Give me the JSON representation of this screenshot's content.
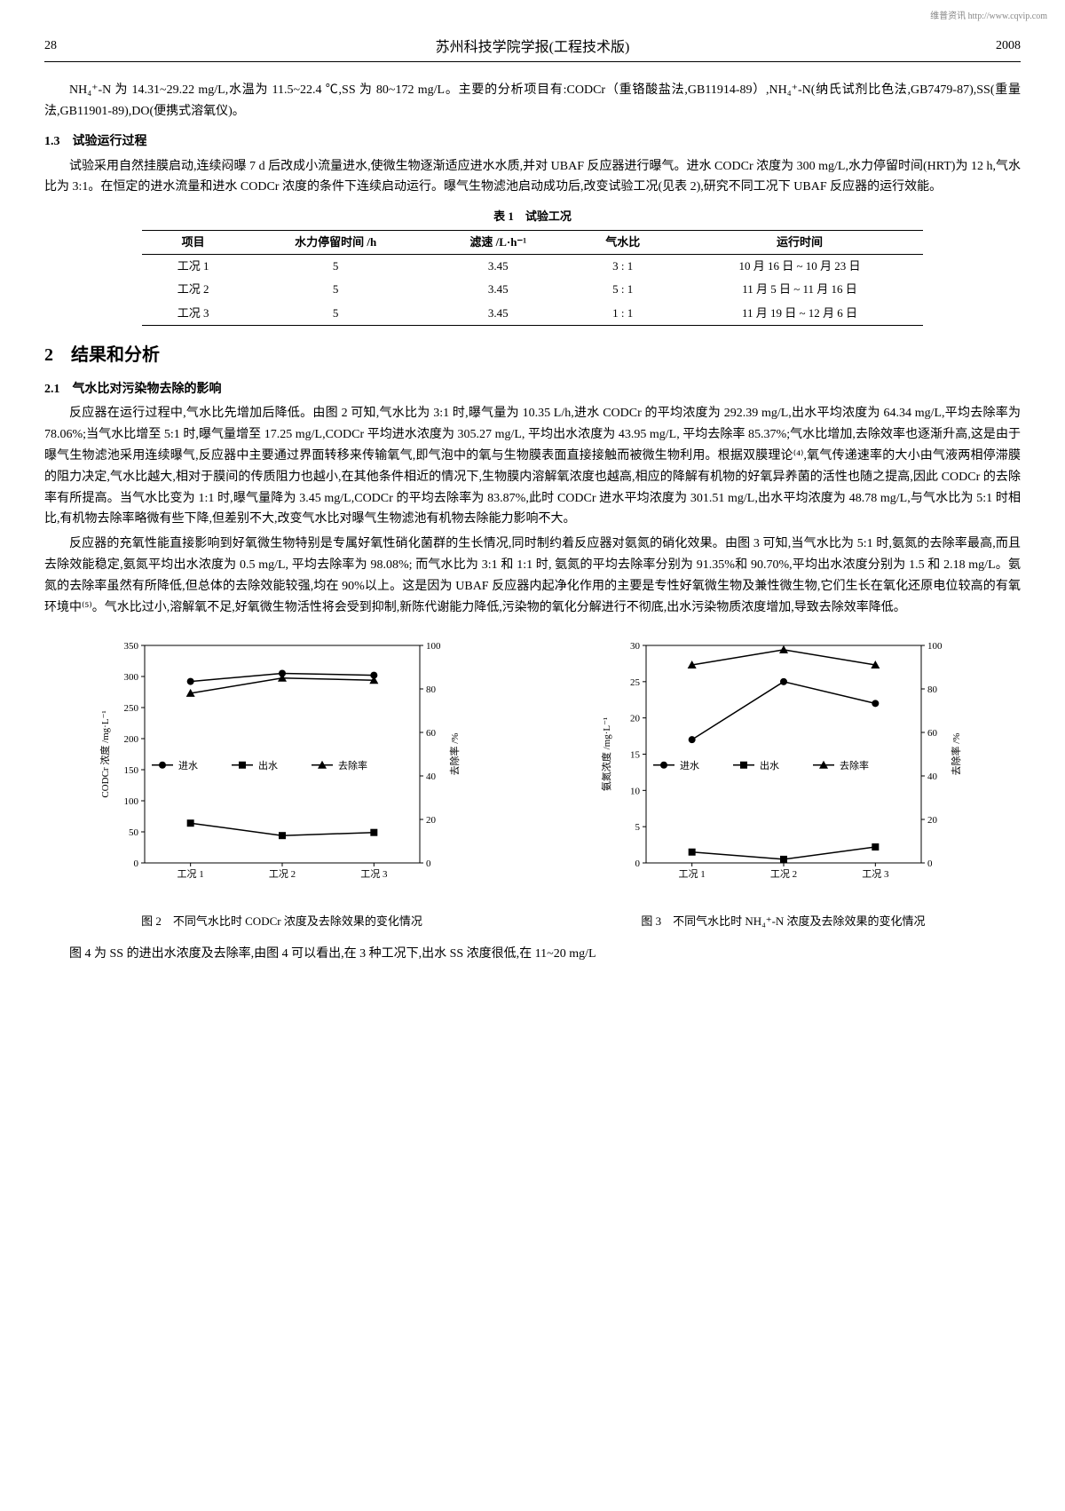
{
  "watermark": "维普资讯 http://www.cqvip.com",
  "header": {
    "page": "28",
    "journal": "苏州科技学院学报(工程技术版)",
    "year": "2008"
  },
  "intro_para": "NH₄⁺-N 为 14.31~29.22 mg/L,水温为 11.5~22.4 ℃,SS 为 80~172 mg/L。主要的分析项目有:CODCr（重铬酸盐法,GB11914-89）,NH₄⁺-N(纳氏试剂比色法,GB7479-87),SS(重量法,GB11901-89),DO(便携式溶氧仪)。",
  "sec13_title": "1.3　试验运行过程",
  "sec13_para": "试验采用自然挂膜启动,连续闷曝 7 d 后改成小流量进水,使微生物逐渐适应进水水质,并对 UBAF 反应器进行曝气。进水 CODCr 浓度为 300 mg/L,水力停留时间(HRT)为 12 h,气水比为 3:1。在恒定的进水流量和进水 CODCr 浓度的条件下连续启动运行。曝气生物滤池启动成功后,改变试验工况(见表 2),研究不同工况下 UBAF 反应器的运行效能。",
  "table1": {
    "caption": "表 1　试验工况",
    "columns": [
      "项目",
      "水力停留时间 /h",
      "滤速 /L·h⁻¹",
      "气水比",
      "运行时间"
    ],
    "rows": [
      [
        "工况 1",
        "5",
        "3.45",
        "3 : 1",
        "10 月 16 日 ~ 10 月 23 日"
      ],
      [
        "工况 2",
        "5",
        "3.45",
        "5 : 1",
        "11 月 5 日 ~ 11 月 16 日"
      ],
      [
        "工况 3",
        "5",
        "3.45",
        "1 : 1",
        "11 月 19 日 ~ 12 月 6 日"
      ]
    ]
  },
  "sec2_title": "2　结果和分析",
  "sec21_title": "2.1　气水比对污染物去除的影响",
  "sec21_p1": "反应器在运行过程中,气水比先增加后降低。由图 2 可知,气水比为 3:1 时,曝气量为 10.35 L/h,进水 CODCr 的平均浓度为 292.39 mg/L,出水平均浓度为 64.34 mg/L,平均去除率为 78.06%;当气水比增至 5:1 时,曝气量增至 17.25 mg/L,CODCr 平均进水浓度为 305.27 mg/L, 平均出水浓度为 43.95 mg/L, 平均去除率 85.37%;气水比增加,去除效率也逐渐升高,这是由于曝气生物滤池采用连续曝气,反应器中主要通过界面转移来传输氧气,即气泡中的氧与生物膜表面直接接触而被微生物利用。根据双膜理论⁽⁴⁾,氧气传递速率的大小由气液两相停滞膜的阻力决定,气水比越大,相对于膜间的传质阻力也越小,在其他条件相近的情况下,生物膜内溶解氧浓度也越高,相应的降解有机物的好氧异养菌的活性也随之提高,因此 CODCr 的去除率有所提高。当气水比变为 1:1 时,曝气量降为 3.45 mg/L,CODCr 的平均去除率为 83.87%,此时 CODCr 进水平均浓度为 301.51 mg/L,出水平均浓度为 48.78 mg/L,与气水比为 5:1 时相比,有机物去除率略微有些下降,但差别不大,改变气水比对曝气生物滤池有机物去除能力影响不大。",
  "sec21_p2": "反应器的充氧性能直接影响到好氧微生物特别是专属好氧性硝化菌群的生长情况,同时制约着反应器对氨氮的硝化效果。由图 3 可知,当气水比为 5:1 时,氨氮的去除率最高,而且去除效能稳定,氨氮平均出水浓度为 0.5 mg/L, 平均去除率为 98.08%; 而气水比为 3:1 和 1:1 时, 氨氮的平均去除率分别为 91.35%和 90.70%,平均出水浓度分别为 1.5 和 2.18 mg/L。氨氮的去除率虽然有所降低,但总体的去除效能较强,均在 90%以上。这是因为 UBAF 反应器内起净化作用的主要是专性好氧微生物及兼性微生物,它们生长在氧化还原电位较高的有氧环境中⁽⁵⁾。气水比过小,溶解氧不足,好氧微生物活性将会受到抑制,新陈代谢能力降低,污染物的氧化分解进行不彻底,出水污染物质浓度增加,导致去除效率降低。",
  "chart2": {
    "type": "bar-line",
    "caption": "图 2　不同气水比时 CODCr 浓度及去除效果的变化情况",
    "categories": [
      "工况 1",
      "工况 2",
      "工况 3"
    ],
    "y1_label": "CODCr 浓度 /mg·L⁻¹",
    "y2_label": "去除率 /%",
    "y1_max": 350,
    "y1_step": 50,
    "y2_max": 100,
    "y2_step": 20,
    "series": {
      "inflow": {
        "label": "进水",
        "values": [
          292,
          305,
          302
        ],
        "marker": "circle"
      },
      "outflow": {
        "label": "出水",
        "values": [
          64,
          44,
          49
        ],
        "marker": "square"
      },
      "removal": {
        "label": "去除率",
        "values": [
          78,
          85,
          84
        ],
        "marker": "triangle"
      }
    },
    "colors": {
      "bar_fill": "#333333",
      "line": "#000000",
      "bg": "#ffffff",
      "axis": "#000000"
    },
    "label_fontsize": 11
  },
  "chart3": {
    "type": "bar-line",
    "caption": "图 3　不同气水比时 NH₄⁺-N 浓度及去除效果的变化情况",
    "categories": [
      "工况 1",
      "工况 2",
      "工况 3"
    ],
    "y1_label": "氨氮浓度 /mg·L⁻¹",
    "y2_label": "去除率 /%",
    "y1_max": 30,
    "y1_step": 5,
    "y2_max": 100,
    "y2_step": 20,
    "series": {
      "inflow": {
        "label": "进水",
        "values": [
          17,
          25,
          22
        ],
        "marker": "circle"
      },
      "outflow": {
        "label": "出水",
        "values": [
          1.5,
          0.5,
          2.2
        ],
        "marker": "square"
      },
      "removal": {
        "label": "去除率",
        "values": [
          91,
          98,
          91
        ],
        "marker": "triangle"
      }
    },
    "colors": {
      "bar_fill": "#333333",
      "line": "#000000",
      "bg": "#ffffff",
      "axis": "#000000"
    },
    "label_fontsize": 11
  },
  "footer_para": "图 4 为 SS 的进出水浓度及去除率,由图 4 可以看出,在 3 种工况下,出水 SS 浓度很低,在 11~20 mg/L"
}
